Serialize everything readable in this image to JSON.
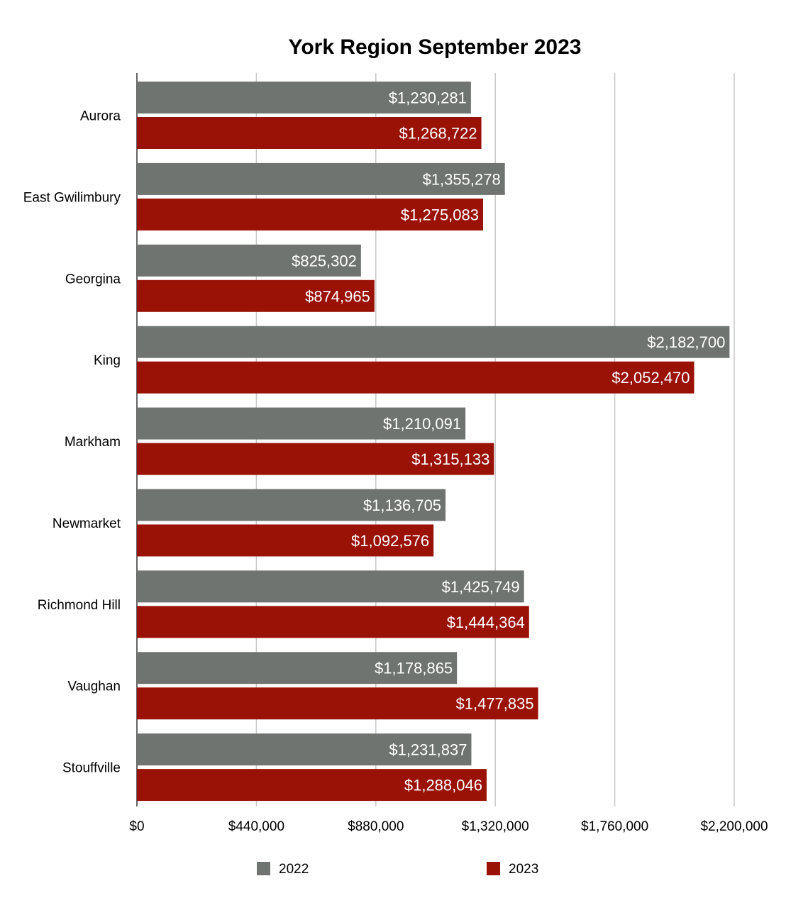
{
  "chart_data": {
    "type": "bar",
    "orientation": "horizontal",
    "title": "York Region September 2023",
    "xlabel": "",
    "ylabel": "",
    "categories": [
      "Aurora",
      "East Gwilimbury",
      "Georgina",
      "King",
      "Markham",
      "Newmarket",
      "Richmond Hill",
      "Vaughan",
      "Stouffville"
    ],
    "series": [
      {
        "name": "2022",
        "color": "#6f7471",
        "values": [
          1230281,
          1355278,
          825302,
          2182700,
          1210091,
          1136705,
          1425749,
          1178865,
          1231837
        ],
        "labels": [
          "$1,230,281",
          "$1,355,278",
          "$825,302",
          "$2,182,700",
          "$1,210,091",
          "$1,136,705",
          "$1,425,749",
          "$1,178,865",
          "$1,231,837"
        ]
      },
      {
        "name": "2023",
        "color": "#9a1106",
        "values": [
          1268722,
          1275083,
          874965,
          2052470,
          1315133,
          1092576,
          1444364,
          1477835,
          1288046
        ],
        "labels": [
          "$1,268,722",
          "$1,275,083",
          "$874,965",
          "$2,052,470",
          "$1,315,133",
          "$1,092,576",
          "$1,444,364",
          "$1,477,835",
          "$1,288,046"
        ]
      }
    ],
    "xlim": [
      0,
      2200000
    ],
    "ticks": [
      0,
      440000,
      880000,
      1320000,
      1760000,
      2200000
    ],
    "tick_labels": [
      "$0",
      "$440,000",
      "$880,000",
      "$1,320,000",
      "$1,760,000",
      "$2,200,000"
    ],
    "grid": true,
    "legend_position": "bottom"
  }
}
